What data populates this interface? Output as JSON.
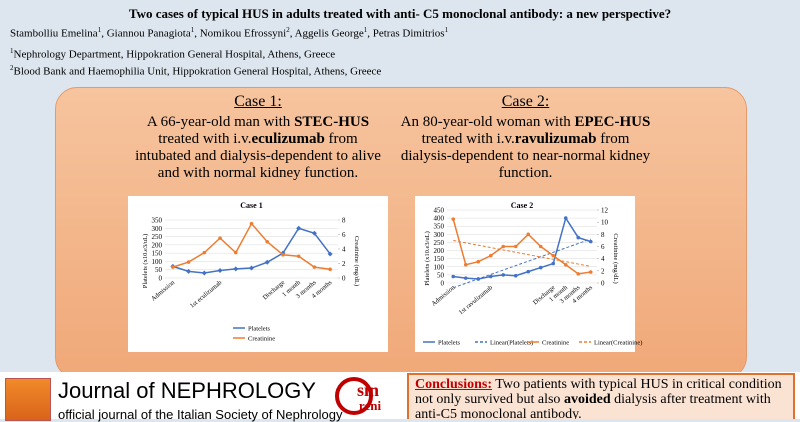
{
  "header": {
    "title": "Two cases of typical HUS in adults treated with anti- C5 monoclonal antibody: a new perspective?",
    "authors": [
      {
        "name": "Stambolliu Emelina",
        "aff": "1"
      },
      {
        "name": "Giannou Panagiota",
        "aff": "1"
      },
      {
        "name": "Nomikou Efrossyni",
        "aff": "2"
      },
      {
        "name": "Aggelis George",
        "aff": "1"
      },
      {
        "name": "Petras Dimitrios",
        "aff": "1"
      }
    ],
    "affiliations": [
      {
        "num": "1",
        "text": "Nephrology Department, Hippokration General Hospital, Athens, Greece"
      },
      {
        "num": "2",
        "text": "Blood Bank and Haemophilia Unit, Hippokration General Hospital, Athens, Greece"
      }
    ]
  },
  "cases": [
    {
      "heading": "Case 1:",
      "text": [
        {
          "t": "A 66-year-old man with ",
          "b": false
        },
        {
          "t": "STEC-HUS",
          "b": true
        },
        {
          "t": " treated with ",
          "b": false
        },
        {
          "t": "i.v.",
          "b": false
        },
        {
          "t": "eculizumab",
          "b": true
        },
        {
          "t": " from intubated and dialysis-dependent to alive and with normal kidney function.",
          "b": false
        }
      ]
    },
    {
      "heading": "Case 2:",
      "text": [
        {
          "t": "An 80-year-old woman with ",
          "b": false
        },
        {
          "t": "EPEC-HUS",
          "b": true
        },
        {
          "t": " treated with ",
          "b": false
        },
        {
          "t": "i.v.",
          "b": false
        },
        {
          "t": "ravulizumab",
          "b": true
        },
        {
          "t": " from dialysis-dependent to near-normal kidney function.",
          "b": false
        }
      ]
    }
  ],
  "chart_data": [
    {
      "type": "line",
      "title": "Case 1",
      "y_label": "Platelets (x10.e3/uL)",
      "y2_label": "Creatinine (mg/dL)",
      "categories": [
        "Admission",
        null,
        null,
        "1st eculizumab",
        null,
        null,
        null,
        "Discharge",
        "1 month",
        "3 months",
        "4 months"
      ],
      "series": [
        {
          "name": "Platelets",
          "color": "#4472c4",
          "marker": "diamond",
          "values": [
            70,
            40,
            30,
            45,
            55,
            60,
            95,
            150,
            300,
            270,
            145
          ]
        },
        {
          "name": "Creatinine",
          "color": "#ed7d31",
          "marker": "circle",
          "axis": "y2",
          "values": [
            1.5,
            2.2,
            3.5,
            5.5,
            3.5,
            7.5,
            5,
            3.2,
            3,
            1.5,
            1.2
          ]
        }
      ],
      "ylim": [
        0,
        350
      ],
      "yticks": [
        0,
        50,
        100,
        150,
        200,
        250,
        300,
        350
      ],
      "y2lim": [
        0,
        8
      ],
      "y2ticks": [
        0,
        2,
        4,
        6,
        8
      ],
      "legend": "bottom",
      "trend_lines": false
    },
    {
      "type": "line",
      "title": "Case 2",
      "y_label": "Platelets (x10.e3/uL)",
      "y2_label": "Creatinine (mg/dL)",
      "categories": [
        "Admission",
        null,
        null,
        "1st ravulizumab",
        null,
        null,
        null,
        null,
        "Discharge",
        "1 month",
        "3 months",
        "4 months"
      ],
      "series": [
        {
          "name": "Platelets",
          "color": "#4472c4",
          "marker": "circle",
          "values": [
            40,
            30,
            25,
            40,
            50,
            45,
            70,
            95,
            120,
            400,
            280,
            255
          ]
        },
        {
          "name": "Creatinine",
          "color": "#ed7d31",
          "marker": "circle",
          "axis": "y2",
          "values": [
            10.5,
            3,
            3.5,
            4.5,
            6,
            6,
            8,
            6,
            4.5,
            3,
            1.5,
            1.8
          ]
        }
      ],
      "trend_names": [
        "Linear(Platelets)",
        "Linear(Creatinine)"
      ],
      "ylim": [
        0,
        450
      ],
      "yticks": [
        0,
        50,
        100,
        150,
        200,
        250,
        300,
        350,
        400,
        450
      ],
      "y2lim": [
        0,
        12
      ],
      "y2ticks": [
        0,
        2,
        4,
        6,
        8,
        10,
        12
      ],
      "legend": "bottom",
      "trend_lines": true
    }
  ],
  "footer": {
    "journal": "Journal of NEPHROLOGY",
    "journal_sub": "official journal of the Italian Society of Nephrology",
    "society_logo": [
      "sin",
      "reni"
    ],
    "conclusions": {
      "label": "Conclusions:",
      "text": [
        {
          "t": " Two patients with typical HUS in critical condition not only survived but also ",
          "b": false
        },
        {
          "t": "avoided",
          "b": true
        },
        {
          "t": " dialysis after treatment with anti-C5 monoclonal antibody.",
          "b": false
        }
      ]
    }
  }
}
